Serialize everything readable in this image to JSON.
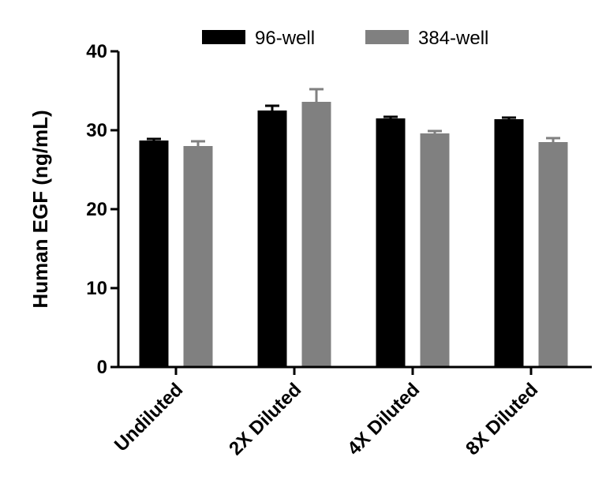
{
  "chart_data": {
    "type": "bar",
    "title": "",
    "xlabel": "",
    "ylabel": "Human EGF (ng/mL)",
    "ylim": [
      0,
      40
    ],
    "yticks": [
      0,
      10,
      20,
      30,
      40
    ],
    "categories": [
      "Undiluted",
      "2X Diluted",
      "4X Diluted",
      "8X Diluted"
    ],
    "series": [
      {
        "name": "96-well",
        "color": "#000000",
        "values": [
          28.7,
          32.5,
          31.5,
          31.4
        ],
        "errors": [
          0.2,
          0.6,
          0.2,
          0.2
        ]
      },
      {
        "name": "384-well",
        "color": "#808080",
        "values": [
          28.0,
          33.6,
          29.6,
          28.5
        ],
        "errors": [
          0.6,
          1.6,
          0.3,
          0.5
        ]
      }
    ],
    "legend": "top",
    "grid": false
  }
}
